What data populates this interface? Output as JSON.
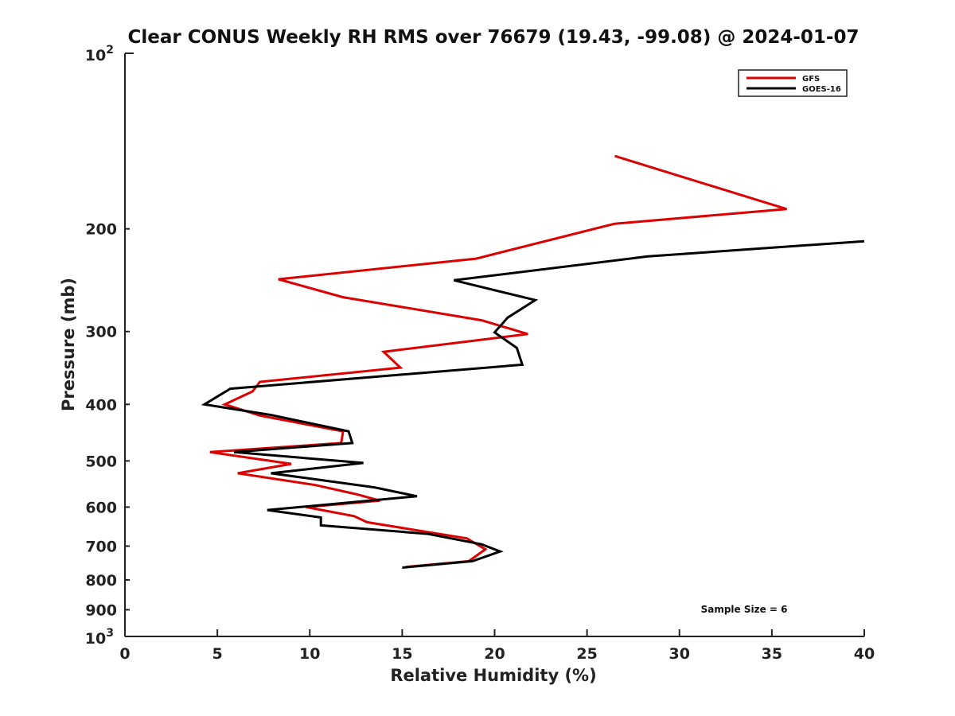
{
  "chart_data": {
    "type": "line",
    "title": "Clear CONUS Weekly RH RMS over 76679 (19.43, -99.08) @ 2024-01-07",
    "xlabel": "Relative Humidity (%)",
    "ylabel": "Pressure (mb)",
    "xlim": [
      0,
      40
    ],
    "ylim": [
      100,
      1000
    ],
    "yscale": "log",
    "y_reversed": true,
    "grid": false,
    "legend_position": "top-right",
    "x_ticks": [
      0,
      5,
      10,
      15,
      20,
      25,
      30,
      35,
      40
    ],
    "x_tick_labels": [
      "0",
      "5",
      "10",
      "15",
      "20",
      "25",
      "30",
      "35",
      "40"
    ],
    "y_ticks": [
      200,
      300,
      400,
      500,
      600,
      700,
      800,
      900
    ],
    "y_tick_labels": [
      "200",
      "300",
      "400",
      "500",
      "600",
      "700",
      "800",
      "900"
    ],
    "y_major_ticks": [
      100,
      1000
    ],
    "y_major_base": "10",
    "y_major_exponents": [
      "2",
      "3"
    ],
    "series": [
      {
        "name": "GFS",
        "color": "#dd0000",
        "points": [
          [
            26.5,
            150
          ],
          [
            35.8,
            185
          ],
          [
            26.5,
            196
          ],
          [
            19.0,
            225
          ],
          [
            8.3,
            244
          ],
          [
            11.8,
            262
          ],
          [
            19.3,
            287
          ],
          [
            21.8,
            303
          ],
          [
            14.0,
            325
          ],
          [
            14.9,
            346
          ],
          [
            7.3,
            366
          ],
          [
            6.9,
            380
          ],
          [
            5.4,
            400
          ],
          [
            7.3,
            418
          ],
          [
            11.8,
            445
          ],
          [
            11.7,
            466
          ],
          [
            4.6,
            483
          ],
          [
            9.0,
            506
          ],
          [
            6.1,
            525
          ],
          [
            10.3,
            550
          ],
          [
            12.5,
            570
          ],
          [
            13.8,
            585
          ],
          [
            9.8,
            600
          ],
          [
            12.4,
            622
          ],
          [
            13.1,
            637
          ],
          [
            18.5,
            679
          ],
          [
            19.5,
            709
          ],
          [
            18.6,
            743
          ],
          [
            15.2,
            760
          ]
        ]
      },
      {
        "name": "GOES-16",
        "color": "#000000",
        "points": [
          [
            40.0,
            210
          ],
          [
            28.3,
            223
          ],
          [
            17.8,
            245
          ],
          [
            22.2,
            265
          ],
          [
            20.7,
            284
          ],
          [
            20.0,
            301
          ],
          [
            21.2,
            320
          ],
          [
            21.5,
            342
          ],
          [
            5.7,
            376
          ],
          [
            4.3,
            400
          ],
          [
            7.9,
            417
          ],
          [
            12.1,
            445
          ],
          [
            12.3,
            466
          ],
          [
            5.9,
            483
          ],
          [
            12.9,
            504
          ],
          [
            7.9,
            525
          ],
          [
            13.5,
            555
          ],
          [
            15.8,
            575
          ],
          [
            7.7,
            607
          ],
          [
            10.6,
            625
          ],
          [
            10.6,
            645
          ],
          [
            16.4,
            667
          ],
          [
            19.3,
            695
          ],
          [
            20.3,
            715
          ],
          [
            18.8,
            743
          ],
          [
            15.0,
            762
          ]
        ]
      }
    ],
    "annotations": [
      {
        "text": "Sample Size = 6",
        "x": 33.5,
        "y": 910
      }
    ]
  }
}
